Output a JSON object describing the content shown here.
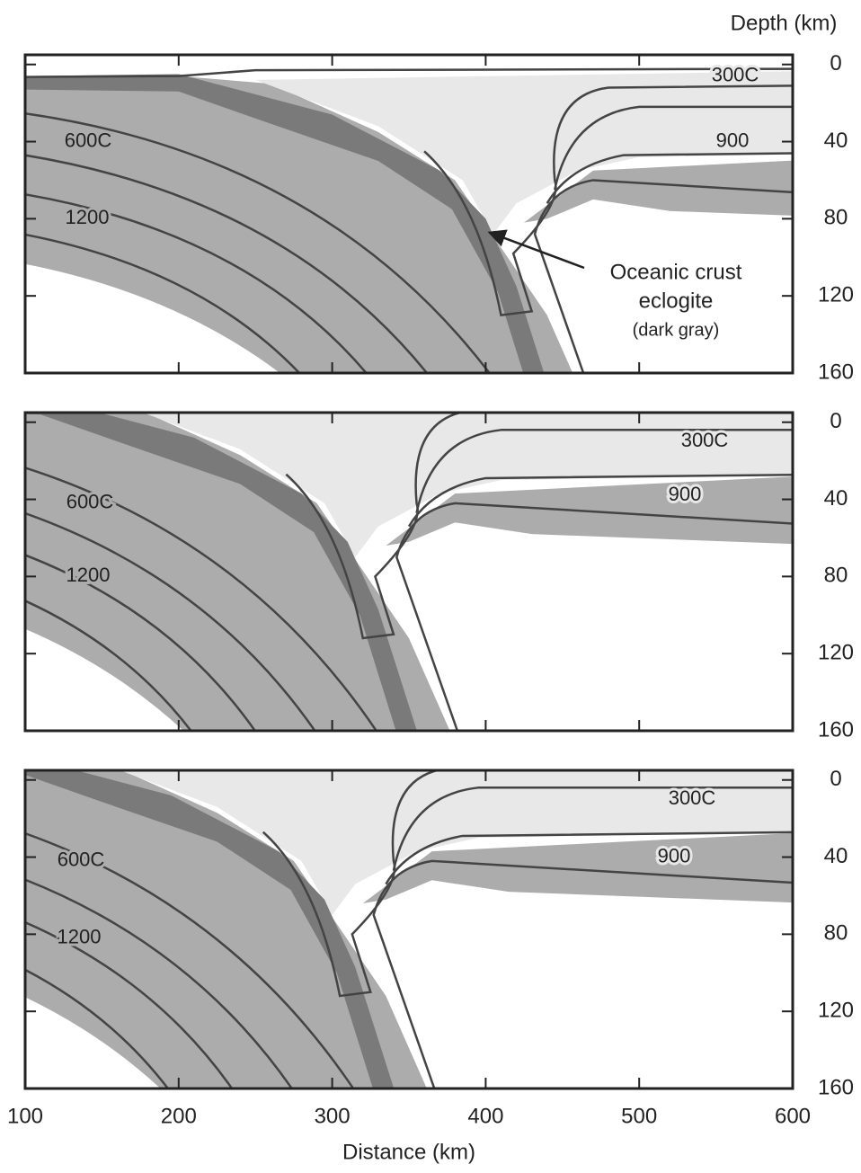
{
  "chart_data": [
    {
      "type": "contour",
      "ylabel": "Depth (km)",
      "xlim": [
        100,
        600
      ],
      "ylim": [
        -5,
        160
      ],
      "yticks": [
        0,
        40,
        80,
        120,
        160
      ],
      "contour_labels": [
        "300C",
        "900",
        "600C",
        "1200"
      ],
      "annotation": {
        "text": [
          "Oceanic crust",
          "eclogite",
          "(dark gray)"
        ],
        "x": 400,
        "y": 88
      }
    },
    {
      "type": "contour",
      "xlim": [
        100,
        600
      ],
      "ylim": [
        -5,
        160
      ],
      "yticks": [
        0,
        40,
        80,
        120,
        160
      ],
      "contour_labels": [
        "300C",
        "900",
        "600C",
        "1200"
      ]
    },
    {
      "type": "contour",
      "xlim": [
        100,
        600
      ],
      "ylim": [
        -5,
        160
      ],
      "yticks": [
        0,
        40,
        80,
        120,
        160
      ],
      "xticks": [
        100,
        200,
        300,
        400,
        500,
        600
      ],
      "xlabel": "Distance (km)",
      "contour_labels": [
        "300C",
        "900",
        "600C",
        "1200"
      ]
    }
  ]
}
